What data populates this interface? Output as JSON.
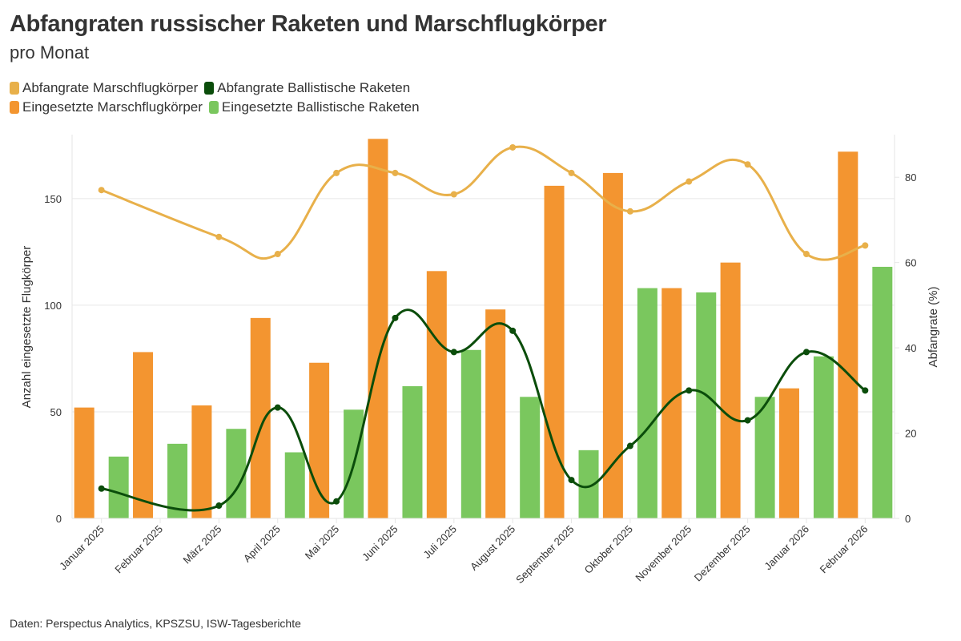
{
  "title": "Abfangraten russischer Raketen und Marschflugkörper",
  "subtitle": "pro Monat",
  "footer": "Daten: Perspectus Analytics, KPSZSU, ISW-Tagesberichte",
  "legend": [
    {
      "label": "Abfangrate Marschflugkörper",
      "color": "#E8B04A"
    },
    {
      "label": "Abfangrate Ballistische Raketen",
      "color": "#0B4D0B"
    },
    {
      "label": "Eingesetzte Marschflugkörper",
      "color": "#F39530"
    },
    {
      "label": "Eingesetzte Ballistische Raketen",
      "color": "#7AC75E"
    }
  ],
  "chart_data": {
    "type": "bar",
    "title": "Abfangraten russischer Raketen und Marschflugkörper",
    "subtitle": "pro Monat",
    "categories": [
      "Januar 2025",
      "Februar 2025",
      "März 2025",
      "April 2025",
      "Mai 2025",
      "Juni 2025",
      "Juli 2025",
      "August 2025",
      "September 2025",
      "Oktober 2025",
      "November 2025",
      "Dezember 2025",
      "Januar 2026",
      "Februar 2026"
    ],
    "ylabel": "Anzahl eingesetzte Flugkörper",
    "y2label": "Abfangrate (%)",
    "ylim": [
      0,
      180
    ],
    "y2lim": [
      0,
      90
    ],
    "yticks": [
      0,
      50,
      100,
      150
    ],
    "y2ticks": [
      0,
      20,
      40,
      60,
      80
    ],
    "grid": true,
    "legend_position": "top-left",
    "series": [
      {
        "name": "Eingesetzte Marschflugkörper",
        "type": "bar",
        "axis": "left",
        "color": "#F39530",
        "values": [
          52,
          78,
          53,
          94,
          73,
          178,
          116,
          98,
          156,
          162,
          108,
          120,
          61,
          172
        ]
      },
      {
        "name": "Eingesetzte Ballistische Raketen",
        "type": "bar",
        "axis": "left",
        "color": "#7AC75E",
        "values": [
          29,
          35,
          42,
          31,
          51,
          62,
          79,
          57,
          32,
          108,
          106,
          57,
          76,
          118
        ]
      },
      {
        "name": "Abfangrate Marschflugkörper",
        "type": "line",
        "axis": "right",
        "color": "#E8B04A",
        "values": [
          77,
          null,
          66,
          62,
          81,
          81,
          76,
          87,
          81,
          72,
          79,
          83,
          62,
          64
        ]
      },
      {
        "name": "Abfangrate Ballistische Raketen",
        "type": "line",
        "axis": "right",
        "color": "#0B4D0B",
        "values": [
          7,
          null,
          3,
          26,
          4,
          47,
          39,
          44,
          9,
          17,
          30,
          23,
          39,
          30
        ]
      }
    ]
  }
}
